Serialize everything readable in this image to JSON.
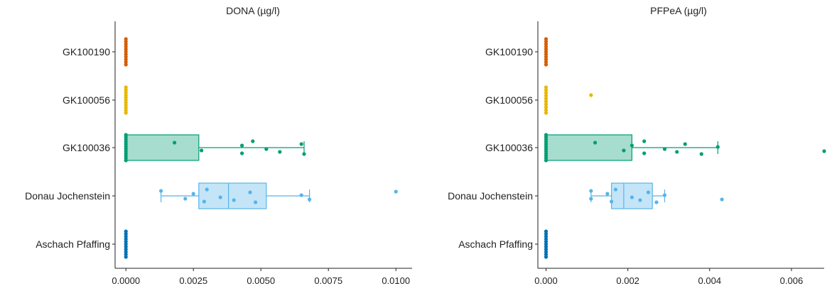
{
  "chart_data": [
    {
      "type": "box",
      "title": "DONA (µg/l)",
      "xlabel": "",
      "ylabel": "",
      "xlim": [
        -0.0004,
        0.0106
      ],
      "ticks": [
        0.0,
        0.0025,
        0.005,
        0.0075,
        0.01
      ],
      "tick_labels": [
        "0.0000",
        "0.0025",
        "0.0050",
        "0.0075",
        "0.0100"
      ],
      "categories": [
        "GK100190",
        "GK100056",
        "GK100036",
        "Donau Jochenstein",
        "Aschach Pfaffing"
      ],
      "colors": [
        "#d55e00",
        "#e7b800",
        "#009e73",
        "#56b4e9",
        "#0072b2"
      ],
      "boxes": [
        {
          "min": 0,
          "q1": 0,
          "median": 0,
          "q3": 0,
          "max": 0
        },
        {
          "min": 0,
          "q1": 0,
          "median": 0,
          "q3": 0,
          "max": 0
        },
        {
          "min": 0,
          "q1": 0,
          "median": 0,
          "q3": 0.0027,
          "max": 0.0066
        },
        {
          "min": 0.0013,
          "q1": 0.0027,
          "median": 0.0038,
          "q3": 0.0052,
          "max": 0.0068
        },
        {
          "min": 0,
          "q1": 0,
          "median": 0,
          "q3": 0,
          "max": 0
        }
      ],
      "points": [
        [
          0,
          0,
          0,
          0,
          0,
          0,
          0,
          0,
          0,
          0,
          0
        ],
        [
          0,
          0,
          0,
          0,
          0,
          0,
          0,
          0,
          0,
          0,
          0
        ],
        [
          0,
          0,
          0,
          0,
          0,
          0,
          0,
          0,
          0,
          0,
          0,
          0,
          0.0018,
          0.0028,
          0.0043,
          0.0043,
          0.0047,
          0.0052,
          0.0057,
          0.0065,
          0.0066
        ],
        [
          0.0013,
          0.0022,
          0.0025,
          0.0029,
          0.003,
          0.0035,
          0.004,
          0.0046,
          0.0048,
          0.0065,
          0.0068,
          0.01
        ],
        [
          0,
          0,
          0,
          0,
          0,
          0,
          0,
          0,
          0,
          0,
          0
        ]
      ],
      "outliers": [
        [],
        [],
        [],
        [
          0.01
        ],
        []
      ]
    },
    {
      "type": "box",
      "title": "PFPeA (µg/l)",
      "xlabel": "",
      "ylabel": "",
      "xlim": [
        -0.0002,
        0.0068
      ],
      "ticks": [
        0.0,
        0.002,
        0.004,
        0.006
      ],
      "tick_labels": [
        "0.000",
        "0.002",
        "0.004",
        "0.006"
      ],
      "categories": [
        "GK100190",
        "GK100056",
        "GK100036",
        "Donau Jochenstein",
        "Aschach Pfaffing"
      ],
      "colors": [
        "#d55e00",
        "#e7b800",
        "#009e73",
        "#56b4e9",
        "#0072b2"
      ],
      "boxes": [
        {
          "min": 0,
          "q1": 0,
          "median": 0,
          "q3": 0,
          "max": 0
        },
        {
          "min": 0,
          "q1": 0,
          "median": 0,
          "q3": 0,
          "max": 0
        },
        {
          "min": 0,
          "q1": 0,
          "median": 0,
          "q3": 0.0021,
          "max": 0.0042
        },
        {
          "min": 0.0011,
          "q1": 0.0016,
          "median": 0.0019,
          "q3": 0.0026,
          "max": 0.0029
        },
        {
          "min": 0,
          "q1": 0,
          "median": 0,
          "q3": 0,
          "max": 0
        }
      ],
      "points": [
        [
          0,
          0,
          0,
          0,
          0,
          0,
          0,
          0,
          0,
          0,
          0
        ],
        [
          0,
          0,
          0,
          0,
          0,
          0,
          0,
          0,
          0,
          0,
          0.0011
        ],
        [
          0,
          0,
          0,
          0,
          0,
          0,
          0,
          0,
          0,
          0,
          0,
          0,
          0.0012,
          0.0019,
          0.0021,
          0.0024,
          0.0024,
          0.0029,
          0.0032,
          0.0034,
          0.0038,
          0.0042,
          0.0068
        ],
        [
          0.0011,
          0.0011,
          0.0015,
          0.0016,
          0.0017,
          0.0021,
          0.0023,
          0.0025,
          0.0027,
          0.0029,
          0.0043
        ],
        [
          0,
          0,
          0,
          0,
          0,
          0,
          0,
          0,
          0,
          0,
          0
        ]
      ],
      "outliers": [
        [],
        [
          0.0011
        ],
        [
          0.0068
        ],
        [
          0.0043
        ],
        []
      ]
    }
  ]
}
